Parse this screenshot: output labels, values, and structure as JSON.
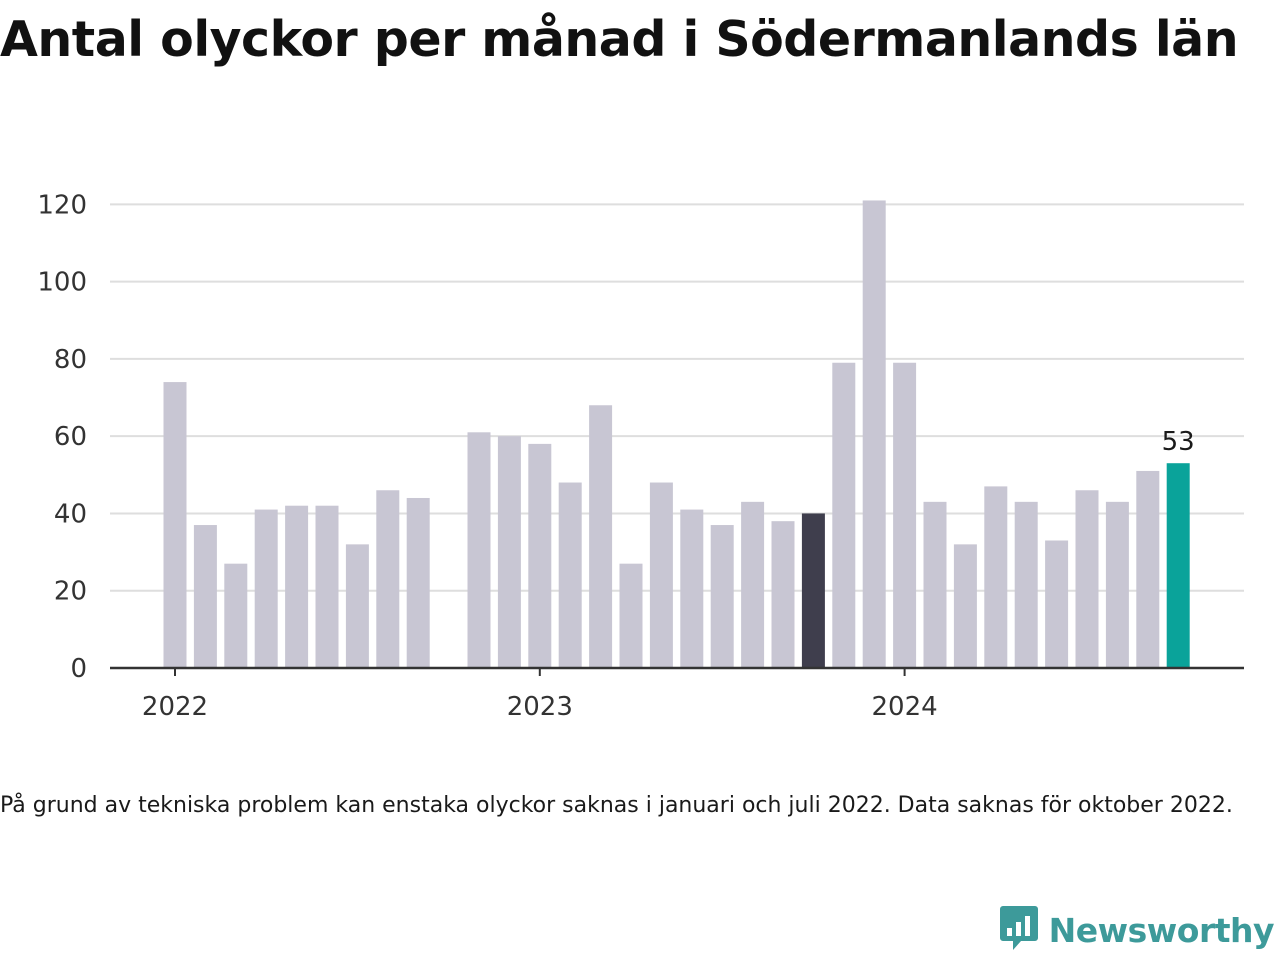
{
  "title": "Antal olyckor per månad i Södermanlands län",
  "note": "På grund av tekniska problem kan enstaka olyckor saknas i januari och juli 2022. Data saknas för oktober 2022.",
  "logo": {
    "text": "Newsworthy",
    "icon": "newsworthy-chart-bubble-icon"
  },
  "colors": {
    "bar": "#c8c6d3",
    "highlight_previous_year": "#3f3e4d",
    "highlight_latest": "#0aa39a",
    "grid": "#dedede",
    "axis": "#333333",
    "logo": "#3d9a9a"
  },
  "chart_data": {
    "type": "bar",
    "title": "Antal olyckor per månad i Södermanlands län",
    "xlabel": "",
    "ylabel": "",
    "ylim": [
      0,
      125
    ],
    "yticks": [
      0,
      20,
      40,
      60,
      80,
      100,
      120
    ],
    "xtick_labels": [
      {
        "label": "2022",
        "month": "2022-01"
      },
      {
        "label": "2023",
        "month": "2023-01"
      },
      {
        "label": "2024",
        "month": "2024-01"
      }
    ],
    "grid": true,
    "categories": [
      "2022-01",
      "2022-02",
      "2022-03",
      "2022-04",
      "2022-05",
      "2022-06",
      "2022-07",
      "2022-08",
      "2022-09",
      "2022-10",
      "2022-11",
      "2022-12",
      "2023-01",
      "2023-02",
      "2023-03",
      "2023-04",
      "2023-05",
      "2023-06",
      "2023-07",
      "2023-08",
      "2023-09",
      "2023-10",
      "2023-11",
      "2023-12",
      "2024-01",
      "2024-02",
      "2024-03",
      "2024-04",
      "2024-05",
      "2024-06",
      "2024-07",
      "2024-08",
      "2024-09",
      "2024-10"
    ],
    "values": [
      74,
      37,
      27,
      41,
      42,
      42,
      32,
      46,
      44,
      null,
      61,
      60,
      58,
      48,
      68,
      27,
      48,
      41,
      37,
      43,
      38,
      40,
      79,
      121,
      79,
      43,
      32,
      47,
      43,
      33,
      46,
      43,
      51,
      53
    ],
    "highlights": {
      "2023-10": "highlight_previous_year",
      "2024-10": "highlight_latest"
    },
    "data_labels": [
      {
        "month": "2024-10",
        "text": "53"
      }
    ]
  }
}
